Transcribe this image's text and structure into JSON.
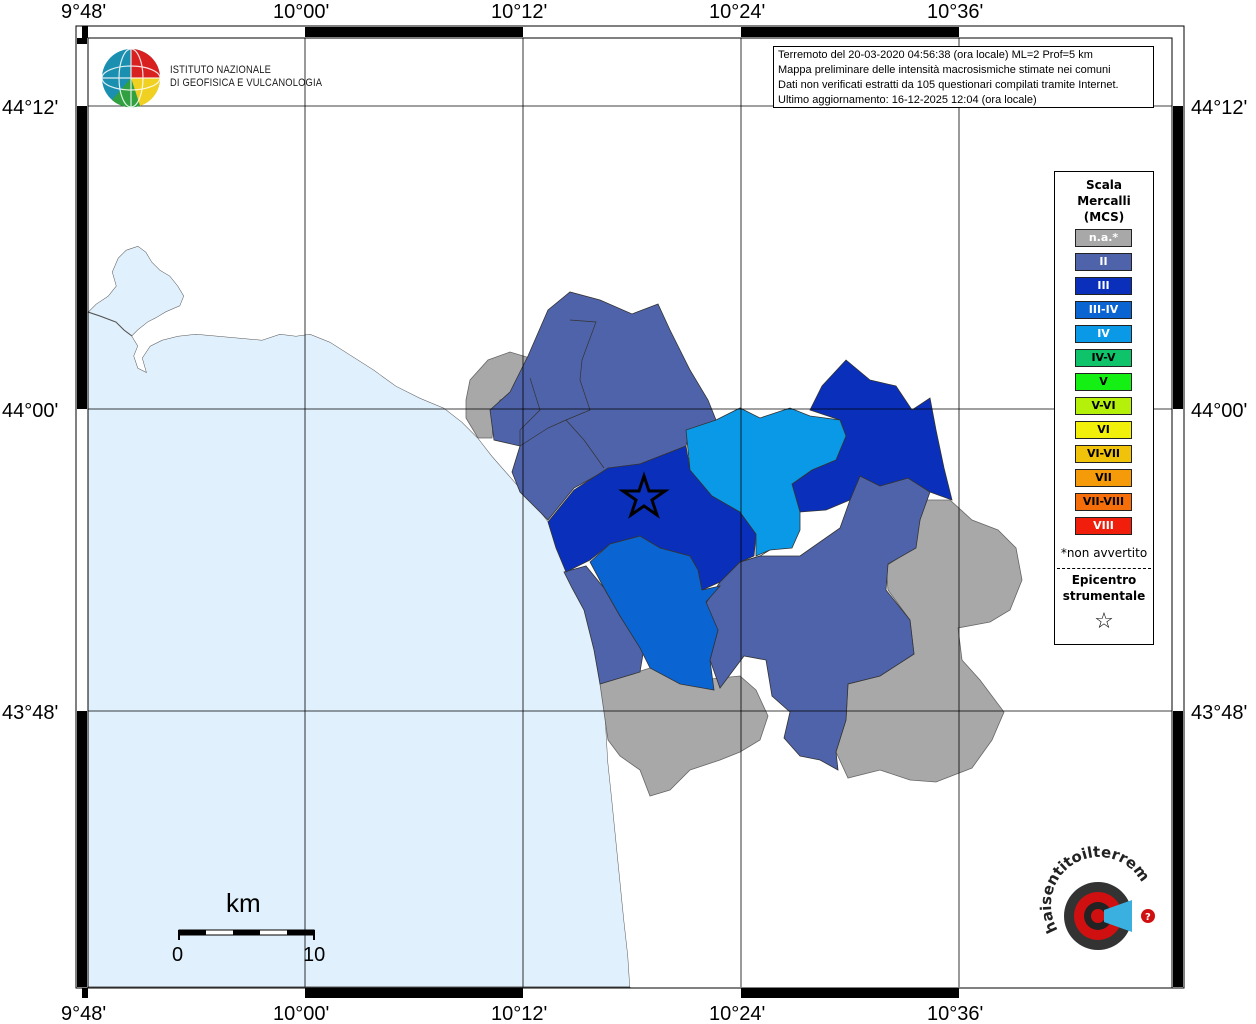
{
  "frame": {
    "top_ticks": [
      "9°48'",
      "10°00'",
      "10°12'",
      "10°24'",
      "10°36'"
    ],
    "bottom_ticks": [
      "9°48'",
      "10°00'",
      "10°12'",
      "10°24'",
      "10°36'"
    ],
    "left_ticks": [
      "44°12'",
      "44°00'",
      "43°48'"
    ],
    "right_ticks": [
      "44°12'",
      "44°00'",
      "43°48'"
    ]
  },
  "logo": {
    "line1": "ISTITUTO NAZIONALE",
    "line2": "DI GEOFISICA E VULCANOLOGIA"
  },
  "info": {
    "line1": "Terremoto del 20-03-2020 04:56:38 (ora locale) ML=2 Prof=5 km",
    "line2": "Mappa preliminare delle intensità macrosismiche stimate nei comuni",
    "line3": "Dati non verificati estratti da 105 questionari compilati tramite Internet.",
    "line4": "Ultimo aggiornamento: 16-12-2025 12:04 (ora locale)"
  },
  "legend": {
    "title1": "Scala",
    "title2": "Mercalli",
    "title3": "(MCS)",
    "items": [
      {
        "label": "n.a.*",
        "color": "#a8a8a8",
        "text_color": "#ffffff"
      },
      {
        "label": "II",
        "color": "#4f63aa",
        "text_color": "#ffffff"
      },
      {
        "label": "III",
        "color": "#0a2fbb",
        "text_color": "#ffffff"
      },
      {
        "label": "III-IV",
        "color": "#0a64d2",
        "text_color": "#ffffff"
      },
      {
        "label": "IV",
        "color": "#0a99e6",
        "text_color": "#ffffff"
      },
      {
        "label": "IV-V",
        "color": "#0ec36a",
        "text_color": "#000000"
      },
      {
        "label": "V",
        "color": "#14f014",
        "text_color": "#000000"
      },
      {
        "label": "V-VI",
        "color": "#b4f00a",
        "text_color": "#000000"
      },
      {
        "label": "VI",
        "color": "#f0f00a",
        "text_color": "#000000"
      },
      {
        "label": "VI-VII",
        "color": "#f0c30a",
        "text_color": "#000000"
      },
      {
        "label": "VII",
        "color": "#f59b0a",
        "text_color": "#000000"
      },
      {
        "label": "VII-VIII",
        "color": "#f56e0a",
        "text_color": "#000000"
      },
      {
        "label": "VIII",
        "color": "#f01e0a",
        "text_color": "#ffffff"
      }
    ],
    "note": "*non avvertito",
    "epi1": "Epicentro",
    "epi2": "strumentale",
    "star": "☆"
  },
  "scalebar": {
    "title": "km",
    "min": "0",
    "max": "10"
  },
  "colors": {
    "sea": "#e0f0fc",
    "na": "#a8a8a8",
    "II": "#4f63aa",
    "III": "#0a2fbb",
    "III_IV": "#0a64d2",
    "IV": "#0a99e6"
  },
  "brand": {
    "text": "haisentitoilterremoto.it"
  }
}
